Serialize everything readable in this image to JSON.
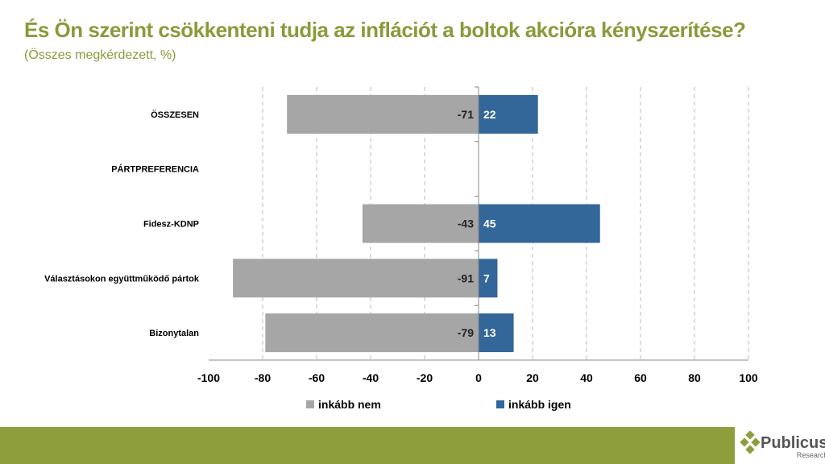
{
  "header": {
    "title": "És Ön szerint csökkenteni tudja az inflációt a boltok akcióra kényszerítése?",
    "subtitle": "(Összes megkérdezett, %)"
  },
  "chart_data": {
    "type": "bar",
    "orientation": "horizontal",
    "stacked": "diverging",
    "categories": [
      "ÖSSZESEN",
      "PÁRTPREFERENCIA",
      "Fidesz-KDNP",
      "Választásokon együttműködő pártok",
      "Bizonytalan"
    ],
    "series": [
      {
        "name": "inkább nem",
        "color": "#a6a6a6",
        "values": [
          -71,
          null,
          -43,
          -91,
          -79
        ]
      },
      {
        "name": "inkább igen",
        "color": "#336699",
        "values": [
          22,
          null,
          45,
          7,
          13
        ]
      }
    ],
    "xlim": [
      -100,
      100
    ],
    "xticks": [
      -100,
      -80,
      -60,
      -40,
      -20,
      0,
      20,
      40,
      60,
      80,
      100
    ],
    "grid": true,
    "legend": "bottom"
  },
  "logo": {
    "name": "Publicus",
    "sub": "Research"
  },
  "colors": {
    "accent": "#8f9e3c"
  }
}
